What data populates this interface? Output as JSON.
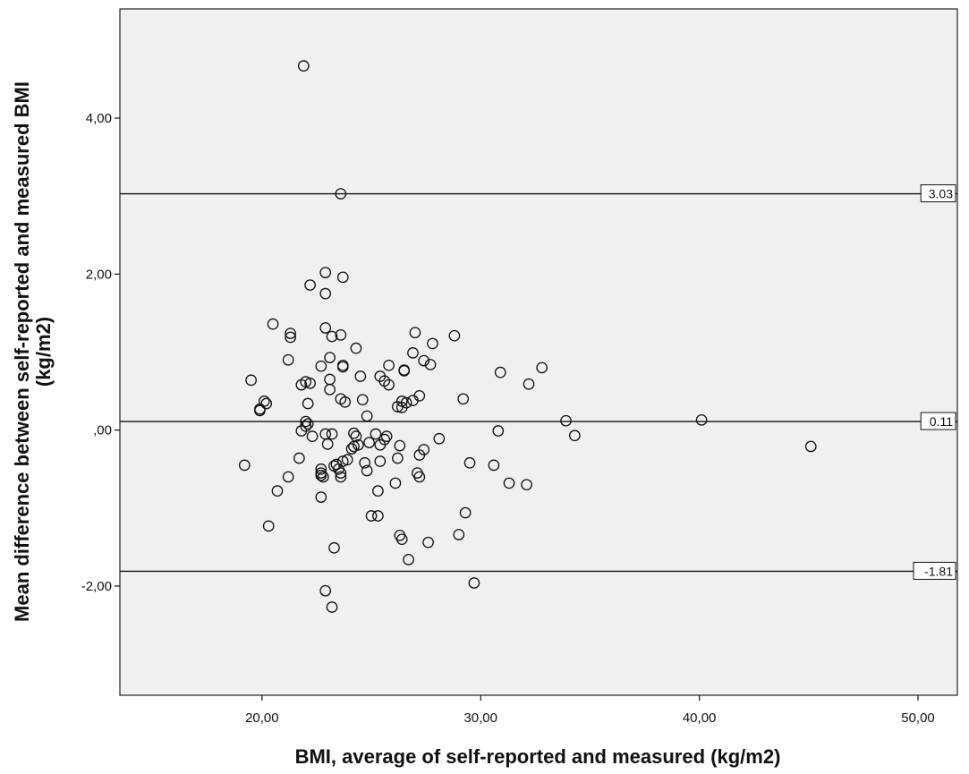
{
  "chart_data": {
    "type": "scatter",
    "title": "",
    "xlabel": "BMI, average of self-reported and measured (kg/m2)",
    "ylabel_lines": [
      "Mean difference between self-reported and measured BMI",
      "(kg/m2)"
    ],
    "xlim": [
      13.5,
      51.8
    ],
    "ylim": [
      -3.4,
      5.4
    ],
    "xticks": [
      {
        "value": 20,
        "label": "20,00"
      },
      {
        "value": 30,
        "label": "30,00"
      },
      {
        "value": 40,
        "label": "40,00"
      },
      {
        "value": 50,
        "label": "50,00"
      }
    ],
    "yticks": [
      {
        "value": 4,
        "label": "4,00"
      },
      {
        "value": 2,
        "label": "2,00"
      },
      {
        "value": 0,
        "label": ",00"
      },
      {
        "value": -2,
        "label": "-2,00"
      }
    ],
    "reference_lines": [
      {
        "value": 3.03,
        "label": "3.03"
      },
      {
        "value": 0.11,
        "label": "0.11"
      },
      {
        "value": -1.81,
        "label": "-1.81"
      }
    ],
    "grid": false,
    "background_color": "#f0f0f0",
    "marker": "open-circle",
    "points": [
      [
        21.9,
        4.67
      ],
      [
        23.6,
        3.03
      ],
      [
        22.9,
        2.02
      ],
      [
        22.2,
        1.86
      ],
      [
        23.7,
        1.96
      ],
      [
        22.9,
        1.75
      ],
      [
        20.5,
        1.36
      ],
      [
        21.3,
        1.24
      ],
      [
        21.3,
        1.19
      ],
      [
        22.9,
        1.31
      ],
      [
        23.2,
        1.2
      ],
      [
        23.6,
        1.22
      ],
      [
        27.0,
        1.25
      ],
      [
        28.8,
        1.21
      ],
      [
        27.8,
        1.11
      ],
      [
        24.3,
        1.05
      ],
      [
        26.9,
        0.99
      ],
      [
        21.2,
        0.9
      ],
      [
        23.1,
        0.93
      ],
      [
        22.7,
        0.82
      ],
      [
        23.7,
        0.83
      ],
      [
        23.7,
        0.81
      ],
      [
        25.8,
        0.83
      ],
      [
        27.4,
        0.89
      ],
      [
        27.7,
        0.84
      ],
      [
        26.5,
        0.77
      ],
      [
        26.5,
        0.76
      ],
      [
        30.9,
        0.74
      ],
      [
        32.8,
        0.8
      ],
      [
        19.5,
        0.64
      ],
      [
        21.8,
        0.58
      ],
      [
        22.0,
        0.62
      ],
      [
        22.2,
        0.6
      ],
      [
        23.1,
        0.65
      ],
      [
        23.1,
        0.52
      ],
      [
        24.5,
        0.69
      ],
      [
        25.4,
        0.69
      ],
      [
        25.6,
        0.63
      ],
      [
        25.8,
        0.58
      ],
      [
        32.2,
        0.59
      ],
      [
        20.1,
        0.37
      ],
      [
        20.2,
        0.34
      ],
      [
        19.9,
        0.27
      ],
      [
        19.9,
        0.25
      ],
      [
        22.1,
        0.34
      ],
      [
        23.6,
        0.4
      ],
      [
        23.8,
        0.36
      ],
      [
        24.6,
        0.39
      ],
      [
        26.2,
        0.3
      ],
      [
        26.4,
        0.37
      ],
      [
        26.6,
        0.35
      ],
      [
        26.4,
        0.29
      ],
      [
        26.9,
        0.38
      ],
      [
        27.2,
        0.44
      ],
      [
        29.2,
        0.4
      ],
      [
        24.8,
        0.18
      ],
      [
        22.0,
        0.11
      ],
      [
        22.1,
        0.08
      ],
      [
        22.0,
        0.05
      ],
      [
        21.8,
        -0.01
      ],
      [
        22.3,
        -0.08
      ],
      [
        22.9,
        -0.05
      ],
      [
        23.2,
        -0.05
      ],
      [
        23.0,
        -0.18
      ],
      [
        24.2,
        -0.04
      ],
      [
        24.3,
        -0.08
      ],
      [
        25.2,
        -0.05
      ],
      [
        25.7,
        -0.08
      ],
      [
        25.6,
        -0.12
      ],
      [
        24.2,
        -0.21
      ],
      [
        24.1,
        -0.24
      ],
      [
        24.4,
        -0.19
      ],
      [
        24.9,
        -0.16
      ],
      [
        25.4,
        -0.19
      ],
      [
        26.3,
        -0.2
      ],
      [
        28.1,
        -0.11
      ],
      [
        27.4,
        -0.25
      ],
      [
        27.2,
        -0.32
      ],
      [
        30.8,
        -0.01
      ],
      [
        33.9,
        0.12
      ],
      [
        34.3,
        -0.07
      ],
      [
        40.1,
        0.13
      ],
      [
        45.1,
        -0.21
      ],
      [
        19.2,
        -0.45
      ],
      [
        21.7,
        -0.36
      ],
      [
        21.2,
        -0.6
      ],
      [
        20.7,
        -0.78
      ],
      [
        22.7,
        -0.5
      ],
      [
        22.7,
        -0.55
      ],
      [
        22.7,
        -0.58
      ],
      [
        22.8,
        -0.6
      ],
      [
        23.3,
        -0.46
      ],
      [
        23.4,
        -0.44
      ],
      [
        23.5,
        -0.5
      ],
      [
        23.6,
        -0.55
      ],
      [
        23.6,
        -0.6
      ],
      [
        23.9,
        -0.38
      ],
      [
        23.7,
        -0.4
      ],
      [
        24.7,
        -0.42
      ],
      [
        24.8,
        -0.52
      ],
      [
        25.4,
        -0.4
      ],
      [
        26.2,
        -0.36
      ],
      [
        27.1,
        -0.55
      ],
      [
        27.2,
        -0.6
      ],
      [
        29.5,
        -0.42
      ],
      [
        30.6,
        -0.45
      ],
      [
        31.3,
        -0.68
      ],
      [
        32.1,
        -0.7
      ],
      [
        25.3,
        -0.78
      ],
      [
        26.1,
        -0.68
      ],
      [
        22.7,
        -0.86
      ],
      [
        20.3,
        -1.23
      ],
      [
        25.0,
        -1.1
      ],
      [
        25.3,
        -1.1
      ],
      [
        29.3,
        -1.06
      ],
      [
        23.3,
        -1.51
      ],
      [
        26.3,
        -1.35
      ],
      [
        26.4,
        -1.4
      ],
      [
        27.6,
        -1.44
      ],
      [
        29.0,
        -1.34
      ],
      [
        26.7,
        -1.66
      ],
      [
        29.7,
        -1.96
      ],
      [
        22.9,
        -2.06
      ],
      [
        23.2,
        -2.27
      ]
    ]
  }
}
